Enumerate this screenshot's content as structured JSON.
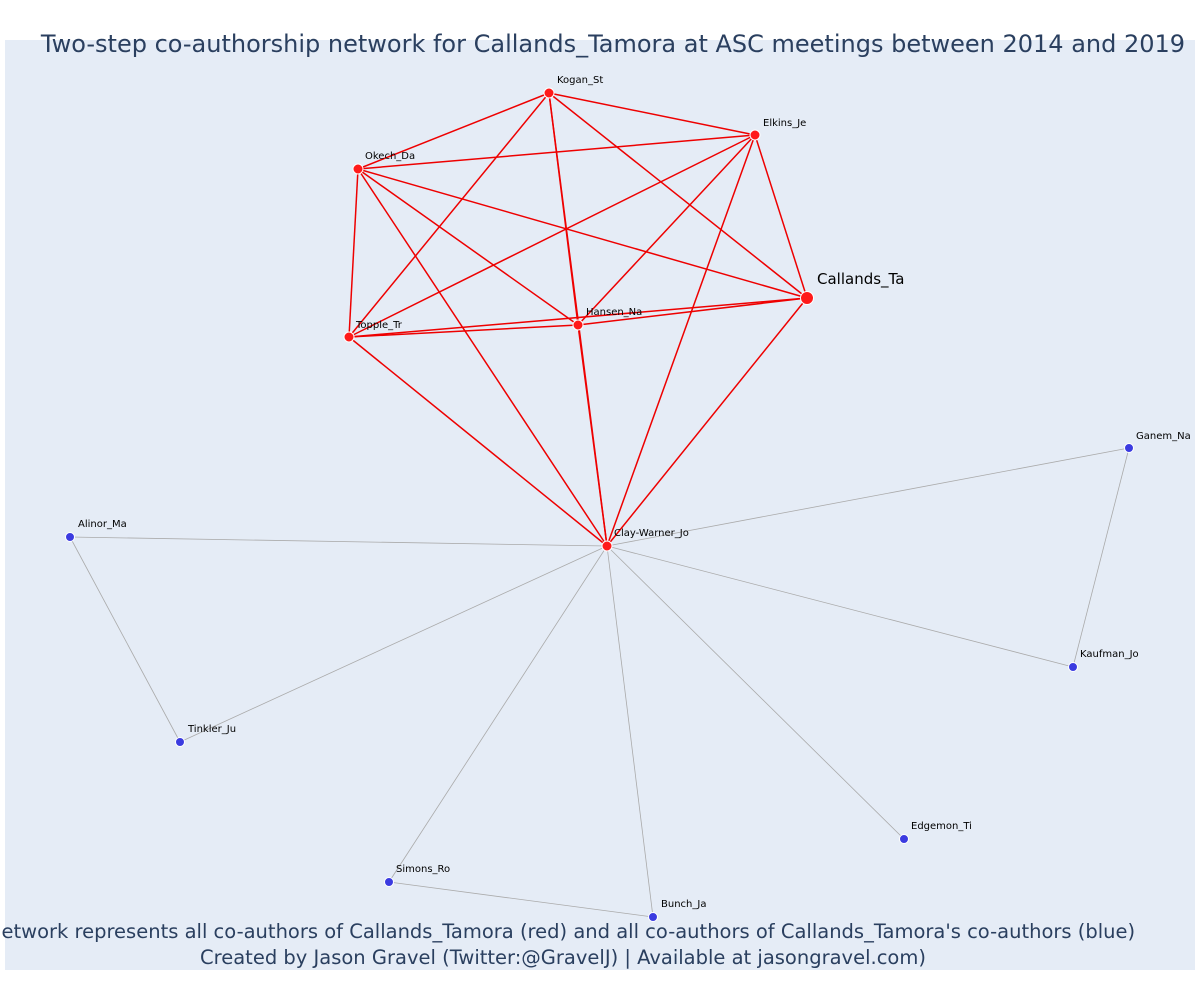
{
  "title": "Two-step co-authorship network for Callands_Tamora at ASC meetings between 2014 and 2019",
  "caption_line1": "Network represents all co-authors of Callands_Tamora (red) and all co-authors of Callands_Tamora's co-authors (blue)",
  "caption_line2": "Created by Jason Gravel (Twitter:@GravelJ) | Available at jasongravel.com)",
  "colors": {
    "background": "#e5ecf6",
    "red_node": "#ff1a1a",
    "red_edge": "#ee0000",
    "blue_node": "#3b3be0",
    "grey_edge": "#aaaaaa",
    "text": "#2a3f5f"
  },
  "chart_data": {
    "type": "network",
    "nodes": [
      {
        "id": "Callands_Ta",
        "group": "focal"
      },
      {
        "id": "Kogan_St",
        "group": "coauthor"
      },
      {
        "id": "Elkins_Je",
        "group": "coauthor"
      },
      {
        "id": "Okech_Da",
        "group": "coauthor"
      },
      {
        "id": "Topple_Tr",
        "group": "coauthor"
      },
      {
        "id": "Hansen_Na",
        "group": "coauthor"
      },
      {
        "id": "Clay-Warner_Jo",
        "group": "coauthor"
      },
      {
        "id": "Ganem_Na",
        "group": "second_step"
      },
      {
        "id": "Alinor_Ma",
        "group": "second_step"
      },
      {
        "id": "Tinkler_Ju",
        "group": "second_step"
      },
      {
        "id": "Kaufman_Jo",
        "group": "second_step"
      },
      {
        "id": "Edgemon_Ti",
        "group": "second_step"
      },
      {
        "id": "Simons_Ro",
        "group": "second_step"
      },
      {
        "id": "Bunch_Ja",
        "group": "second_step"
      }
    ],
    "edges": [
      [
        "Kogan_St",
        "Elkins_Je"
      ],
      [
        "Kogan_St",
        "Okech_Da"
      ],
      [
        "Kogan_St",
        "Topple_Tr"
      ],
      [
        "Kogan_St",
        "Hansen_Na"
      ],
      [
        "Kogan_St",
        "Callands_Ta"
      ],
      [
        "Kogan_St",
        "Clay-Warner_Jo"
      ],
      [
        "Elkins_Je",
        "Okech_Da"
      ],
      [
        "Elkins_Je",
        "Topple_Tr"
      ],
      [
        "Elkins_Je",
        "Hansen_Na"
      ],
      [
        "Elkins_Je",
        "Callands_Ta"
      ],
      [
        "Elkins_Je",
        "Clay-Warner_Jo"
      ],
      [
        "Okech_Da",
        "Topple_Tr"
      ],
      [
        "Okech_Da",
        "Hansen_Na"
      ],
      [
        "Okech_Da",
        "Callands_Ta"
      ],
      [
        "Okech_Da",
        "Clay-Warner_Jo"
      ],
      [
        "Topple_Tr",
        "Hansen_Na"
      ],
      [
        "Topple_Tr",
        "Callands_Ta"
      ],
      [
        "Topple_Tr",
        "Clay-Warner_Jo"
      ],
      [
        "Hansen_Na",
        "Callands_Ta"
      ],
      [
        "Hansen_Na",
        "Clay-Warner_Jo"
      ],
      [
        "Callands_Ta",
        "Clay-Warner_Jo"
      ],
      [
        "Clay-Warner_Jo",
        "Ganem_Na"
      ],
      [
        "Clay-Warner_Jo",
        "Alinor_Ma"
      ],
      [
        "Clay-Warner_Jo",
        "Tinkler_Ju"
      ],
      [
        "Clay-Warner_Jo",
        "Kaufman_Jo"
      ],
      [
        "Clay-Warner_Jo",
        "Edgemon_Ti"
      ],
      [
        "Clay-Warner_Jo",
        "Simons_Ro"
      ],
      [
        "Clay-Warner_Jo",
        "Bunch_Ja"
      ],
      [
        "Alinor_Ma",
        "Tinkler_Ju"
      ],
      [
        "Ganem_Na",
        "Kaufman_Jo"
      ],
      [
        "Simons_Ro",
        "Bunch_Ja"
      ]
    ]
  }
}
